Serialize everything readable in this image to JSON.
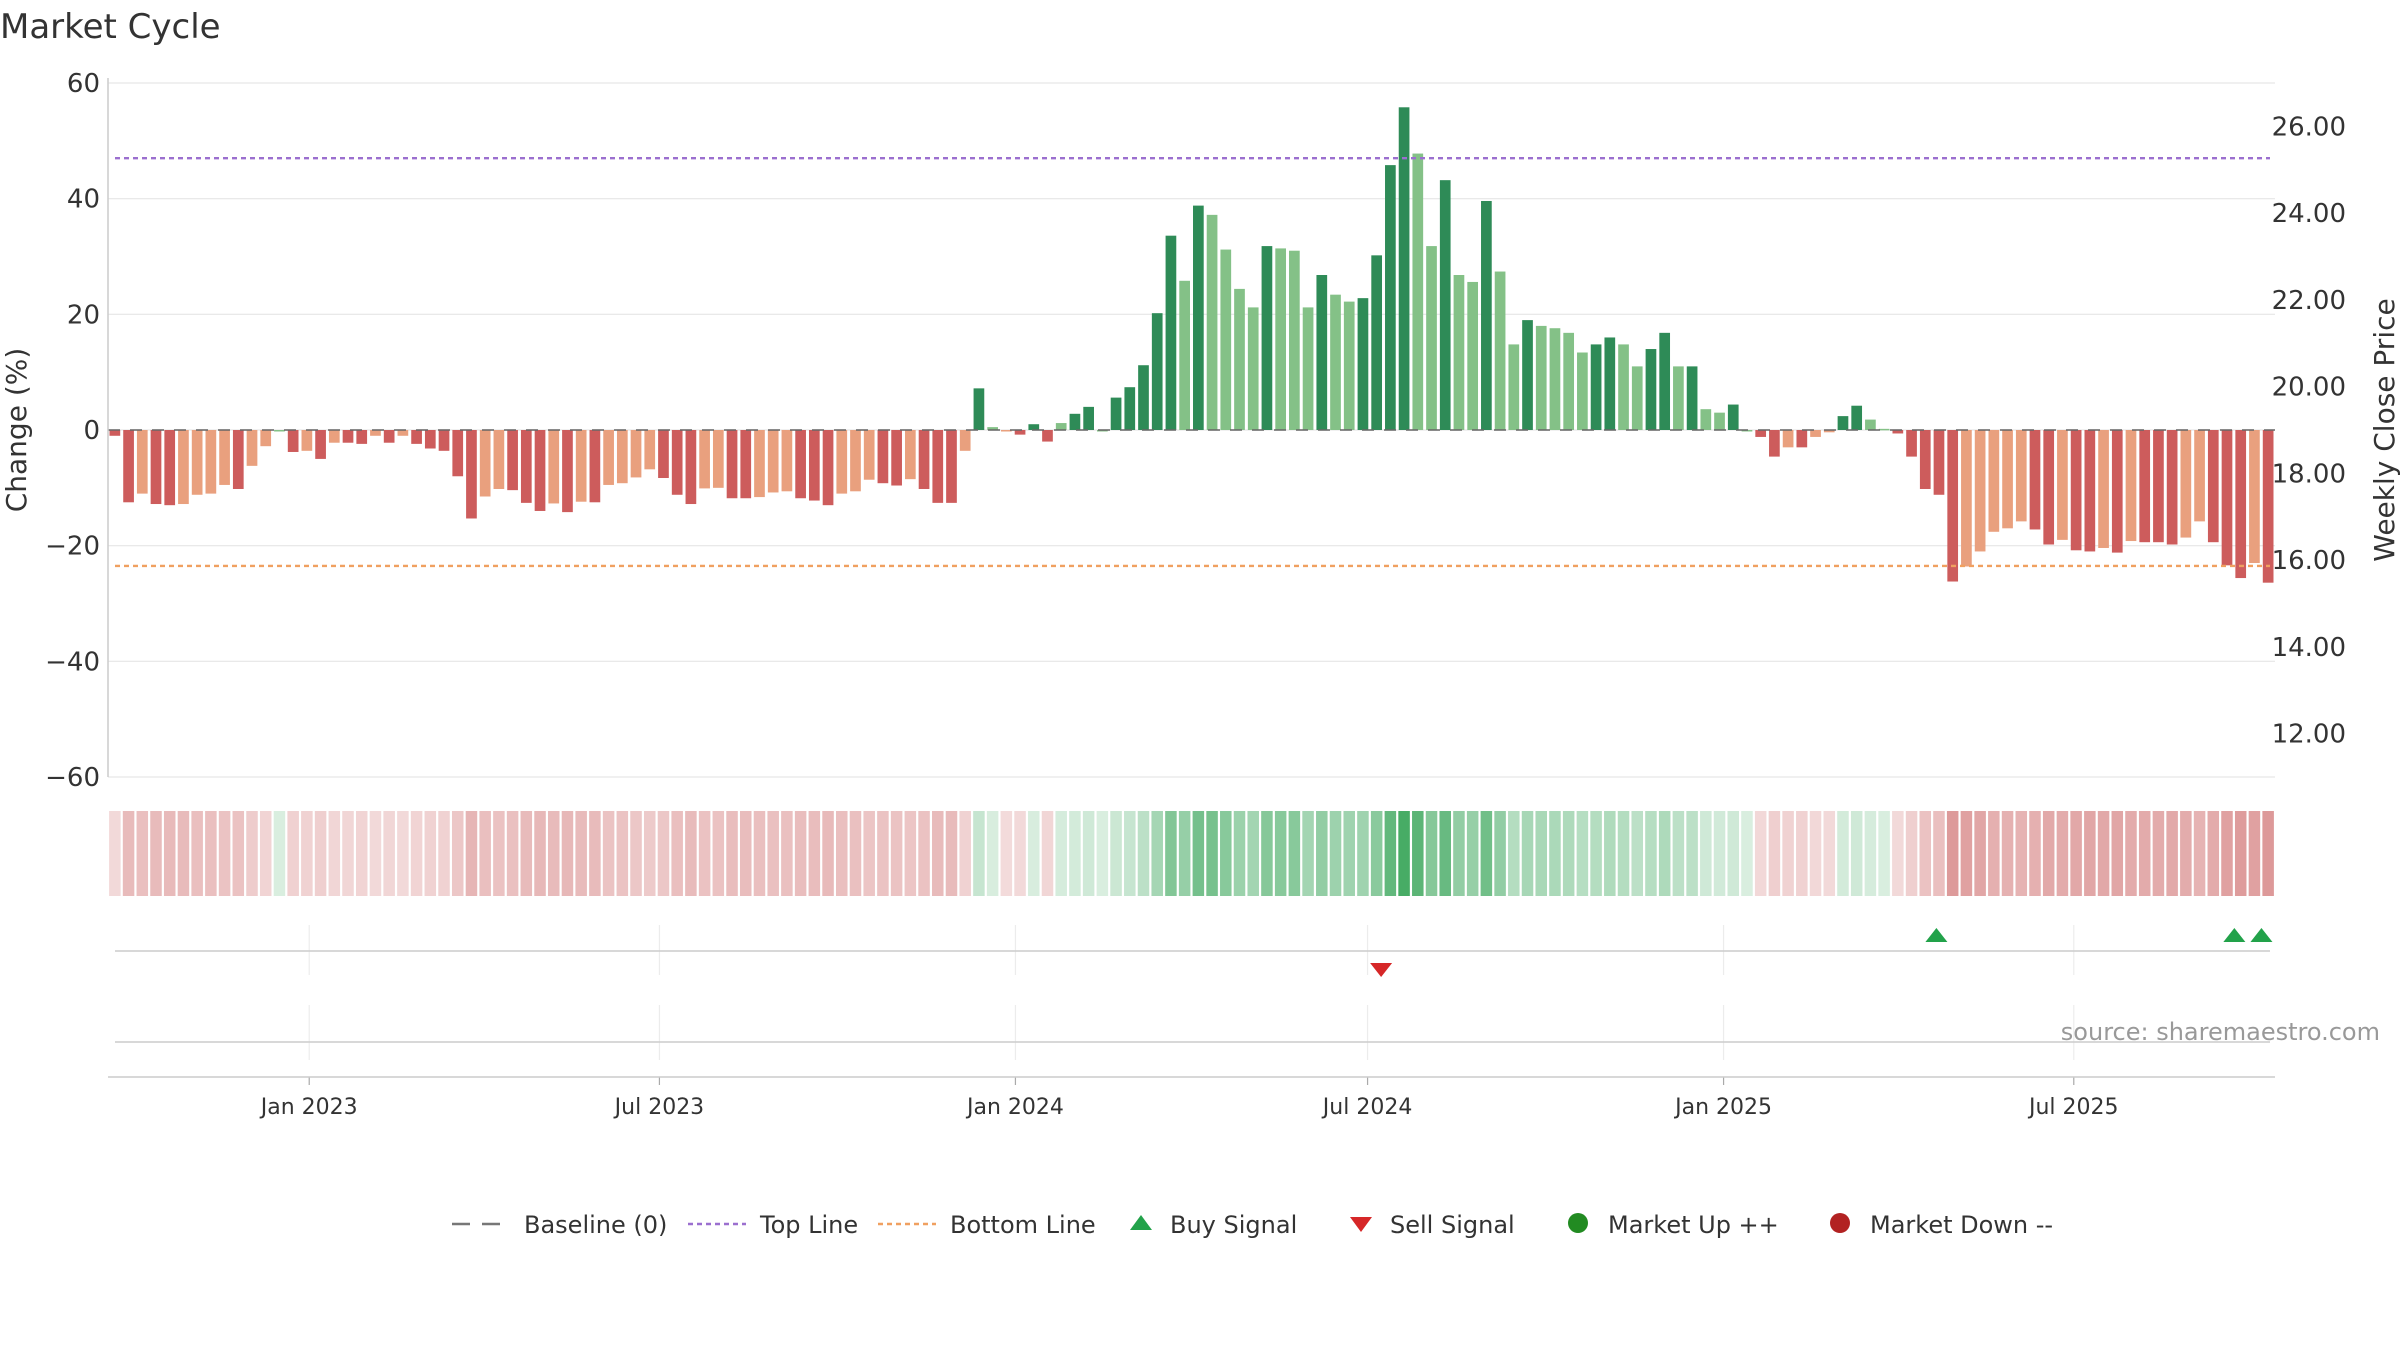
{
  "chart_data": {
    "type": "bar",
    "title": "Market Cycle",
    "ylabel_left": "Change (%)",
    "ylabel_right": "Weekly Close Price",
    "ylim_left": [
      -60,
      60
    ],
    "ylim_right": [
      11.0,
      27.0
    ],
    "yticks_left": [
      60,
      40,
      20,
      0,
      -20,
      -40,
      -60
    ],
    "yticks_left_labels": [
      "60",
      "40",
      "20",
      "0",
      "−20",
      "−40",
      "−60"
    ],
    "yticks_right": [
      26,
      24,
      22,
      20,
      18,
      16,
      14,
      12
    ],
    "yticks_right_labels": [
      "26.00",
      "24.00",
      "22.00",
      "20.00",
      "18.00",
      "16.00",
      "14.00",
      "12.00"
    ],
    "x_start": "2022-09-19",
    "x_end": "2025-10-13",
    "x_ticks": [
      "2023-01-01",
      "2023-07-01",
      "2024-01-01",
      "2024-07-01",
      "2025-01-01",
      "2025-07-01"
    ],
    "x_tick_labels": [
      "Jan 2023",
      "Jul 2023",
      "Jan 2024",
      "Jul 2024",
      "Jan 2025",
      "Jul 2025"
    ],
    "top_line": 47,
    "bottom_line": -23.5,
    "baseline": 0,
    "weekly_change": [
      -1,
      -12.5,
      -11,
      -12.8,
      -13,
      -12.8,
      -11.2,
      -11,
      -9.5,
      -10.2,
      -6.2,
      -2.8,
      0,
      -3.8,
      -3.6,
      -5,
      -2.2,
      -2.2,
      -2.4,
      -1,
      -2.2,
      -1,
      -2.4,
      -3.2,
      -3.6,
      -8,
      -15.3,
      -11.5,
      -10.2,
      -10.4,
      -12.6,
      -14,
      -12.7,
      -14.2,
      -12.4,
      -12.5,
      -9.5,
      -9.2,
      -8.2,
      -6.8,
      -8.3,
      -11.2,
      -12.8,
      -10.1,
      -10,
      -11.8,
      -11.8,
      -11.6,
      -10.8,
      -10.6,
      -11.8,
      -12.2,
      -13,
      -11,
      -10.6,
      -8.6,
      -9.2,
      -9.6,
      -8.5,
      -10.2,
      -12.6,
      -12.6,
      -3.6,
      7.2,
      0.5,
      -0.2,
      -0.8,
      1,
      -2,
      1.2,
      2.8,
      4,
      0,
      5.6,
      7.4,
      11.2,
      20.2,
      33.6,
      25.8,
      38.8,
      37.2,
      31.2,
      24.4,
      21.2,
      31.8,
      31.4,
      31,
      21.2,
      26.8,
      23.4,
      22.2,
      22.8,
      30.2,
      45.8,
      55.8,
      47.8,
      31.8,
      43.2,
      26.8,
      25.6,
      39.6,
      27.4,
      14.8,
      19,
      18,
      17.6,
      16.8,
      13.4,
      14.8,
      16,
      14.8,
      11,
      14,
      16.8,
      11,
      11,
      3.6,
      3,
      4.4,
      0,
      -1.2,
      -4.6,
      -3,
      -3,
      -1.2,
      -0.4,
      2.4,
      4.2,
      1.8,
      0.2,
      -0.6,
      -4.6,
      -10.2,
      -11.2,
      -26.2,
      -23.6,
      -21,
      -17.6,
      -17,
      -15.8,
      -17.2,
      -19.8,
      -19,
      -20.8,
      -21,
      -20.4,
      -21.2,
      -19.2,
      -19.4,
      -19.4,
      -19.8,
      -18.6,
      -15.8,
      -19.4,
      -23.4,
      -25.6,
      -23,
      -26.4
    ],
    "buy_signals": [
      "2025-04-21",
      "2025-09-22",
      "2025-10-06"
    ],
    "sell_signals": [
      "2024-07-08"
    ],
    "annotation": "source: sharemaestro.com",
    "legend": [
      {
        "label": "Baseline (0)",
        "symbol": "dash",
        "color": "#777777"
      },
      {
        "label": "Top Line",
        "symbol": "dot",
        "color": "#9b6fcf"
      },
      {
        "label": "Bottom Line",
        "symbol": "dot",
        "color": "#f0a060"
      },
      {
        "label": "Buy Signal",
        "symbol": "triangle-up",
        "color": "#22a24a"
      },
      {
        "label": "Sell Signal",
        "symbol": "triangle-down",
        "color": "#d62728"
      },
      {
        "label": "Market Up ++",
        "symbol": "circle",
        "color": "#228b22"
      },
      {
        "label": "Market Down --",
        "symbol": "circle",
        "color": "#b22222"
      }
    ],
    "legend_position": "bottom-center",
    "colors": {
      "up_strong": "#2e8b57",
      "up_light": "#84c187",
      "down_strong": "#cd5c5c",
      "down_light": "#e9a07e",
      "top_line": "#9b6fcf",
      "bottom_line": "#f0a060",
      "grid": "#e6e6e6"
    },
    "grid": true
  }
}
